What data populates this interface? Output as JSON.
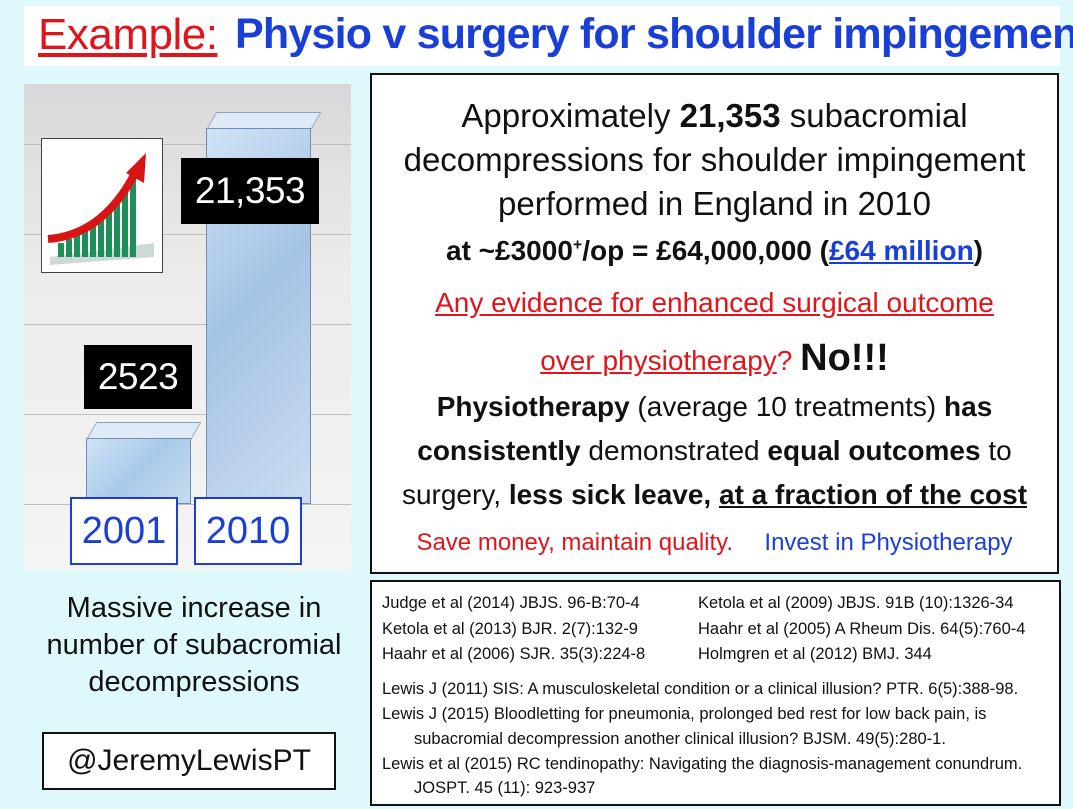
{
  "title": {
    "prefix": "Example:",
    "main": "Physio v surgery for shoulder impingement"
  },
  "chart_data": {
    "type": "bar",
    "categories": [
      "2001",
      "2010"
    ],
    "values": [
      2523,
      21353
    ],
    "value_labels": [
      "2523",
      "21,353"
    ],
    "colors": {
      "bar": "#a9c9e9",
      "label_bg": "#000000",
      "year_border": "#1a3fd6"
    }
  },
  "icon": "growth-chart-arrow-icon",
  "caption": {
    "lines": [
      "Massive increase in",
      "number of subacromial",
      "decompressions"
    ]
  },
  "handle": "@JeremyLewisPT",
  "main_box": {
    "line1": "Approximately ",
    "line1_bold": "21,353",
    "line1_end": " subacromial",
    "line2": "decompressions for shoulder impingement",
    "line3": "performed in England in 2010",
    "cost_a": "at ~£3000",
    "cost_sup": "+",
    "cost_b": "/op = £64,000,000  (",
    "cost_link": "£64 million",
    "cost_c": ")",
    "evidence1": "Any evidence for enhanced surgical outcome",
    "evidence2": "over physiotherapy",
    "evidence_q": "? ",
    "evidence_no": "No!!!",
    "physio1_b": "Physiotherapy",
    "physio1": " (average 10 treatments) ",
    "physio1_b2": "has",
    "physio2_b": "consistently",
    "physio2": " demonstrated ",
    "physio2_b2": "equal outcomes",
    "physio2_end": " to",
    "physio3": "surgery, ",
    "physio3_b": "less sick leave, ",
    "physio3_bu": "at a fraction of the cost",
    "save": "Save money, maintain quality.",
    "invest": "Invest in Physiotherapy"
  },
  "references": [
    "Judge  et al (2014) JBJS. 96-B:70-4",
    "Ketola et al (2009) JBJS. 91B (10):1326-34",
    "Ketola et al (2013) BJR. 2(7):132-9",
    "Haahr et al (2005) A Rheum Dis. 64(5):760-4",
    "Haahr et al (2006) SJR. 35(3):224-8",
    "Holmgren et al (2012) BMJ. 344",
    "Lewis J (2011) SIS: A musculoskeletal condition or a clinical illusion? PTR. 6(5):388-98.",
    "Lewis J (2015) Bloodletting for pneumonia, prolonged bed rest for low back pain, is",
    "subacromial decompression another clinical illusion? BJSM. 49(5):280-1.",
    "Lewis et al (2015) RC tendinopathy: Navigating the diagnosis-management conundrum.",
    "JOSPT. 45 (11): 923-937"
  ]
}
